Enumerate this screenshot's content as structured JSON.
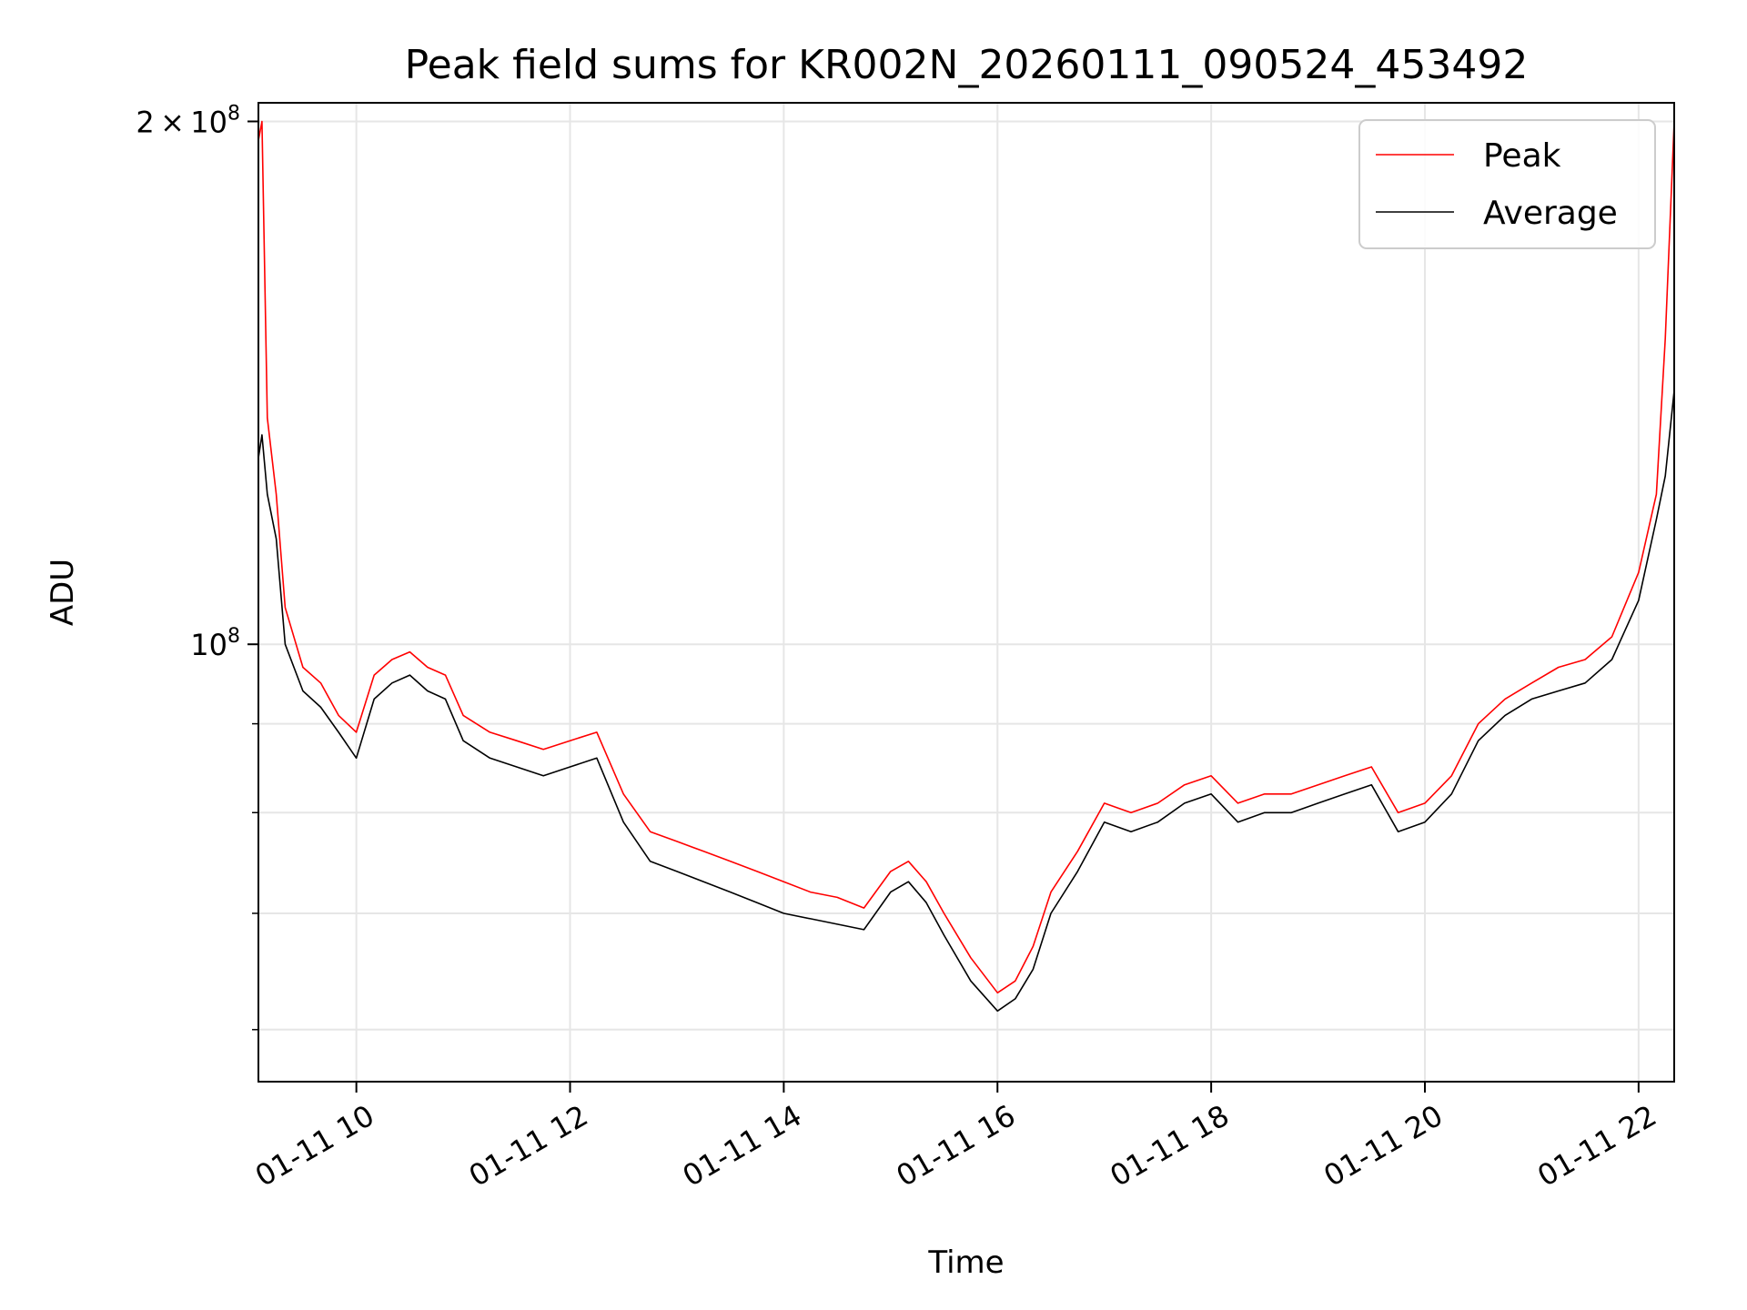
{
  "chart_data": {
    "type": "line",
    "title": "Peak field sums for KR002N_20260111_090524_453492",
    "xlabel": "Time",
    "ylabel": "ADU",
    "yscale": "log",
    "ylim": [
      56000000,
      205000000
    ],
    "xlim": [
      "2026-01-11 09:05",
      "2026-01-11 22:20"
    ],
    "grid": true,
    "legend": {
      "placement": "top-right",
      "entries": [
        "Peak",
        "Average"
      ]
    },
    "x_ticks": [
      "01-11 10",
      "01-11 12",
      "01-11 14",
      "01-11 16",
      "01-11 18",
      "01-11 20",
      "01-11 22"
    ],
    "x_tick_values": [
      "2026-01-11 10:00",
      "2026-01-11 12:00",
      "2026-01-11 14:00",
      "2026-01-11 16:00",
      "2026-01-11 18:00",
      "2026-01-11 20:00",
      "2026-01-11 22:00"
    ],
    "y_tick_labels": [
      {
        "value": 100000000,
        "mantissa": "",
        "exponent": "8"
      },
      {
        "value": 200000000,
        "mantissa": "2",
        "exponent": "8"
      }
    ],
    "y_minor_ticks": [
      60000000,
      70000000,
      80000000,
      90000000
    ],
    "series": [
      {
        "name": "Peak",
        "color": "#ff0000",
        "x": [
          "2026-01-11 09:05",
          "2026-01-11 09:07",
          "2026-01-11 09:10",
          "2026-01-11 09:15",
          "2026-01-11 09:20",
          "2026-01-11 09:30",
          "2026-01-11 09:40",
          "2026-01-11 09:50",
          "2026-01-11 10:00",
          "2026-01-11 10:10",
          "2026-01-11 10:20",
          "2026-01-11 10:30",
          "2026-01-11 10:40",
          "2026-01-11 10:50",
          "2026-01-11 11:00",
          "2026-01-11 11:15",
          "2026-01-11 11:30",
          "2026-01-11 11:45",
          "2026-01-11 12:00",
          "2026-01-11 12:15",
          "2026-01-11 12:30",
          "2026-01-11 12:45",
          "2026-01-11 13:00",
          "2026-01-11 13:15",
          "2026-01-11 13:30",
          "2026-01-11 13:45",
          "2026-01-11 14:00",
          "2026-01-11 14:15",
          "2026-01-11 14:30",
          "2026-01-11 14:45",
          "2026-01-11 15:00",
          "2026-01-11 15:10",
          "2026-01-11 15:20",
          "2026-01-11 15:30",
          "2026-01-11 15:45",
          "2026-01-11 16:00",
          "2026-01-11 16:10",
          "2026-01-11 16:20",
          "2026-01-11 16:30",
          "2026-01-11 16:45",
          "2026-01-11 17:00",
          "2026-01-11 17:15",
          "2026-01-11 17:30",
          "2026-01-11 17:45",
          "2026-01-11 18:00",
          "2026-01-11 18:15",
          "2026-01-11 18:30",
          "2026-01-11 18:45",
          "2026-01-11 19:00",
          "2026-01-11 19:15",
          "2026-01-11 19:30",
          "2026-01-11 19:45",
          "2026-01-11 20:00",
          "2026-01-11 20:15",
          "2026-01-11 20:30",
          "2026-01-11 20:45",
          "2026-01-11 21:00",
          "2026-01-11 21:15",
          "2026-01-11 21:30",
          "2026-01-11 21:45",
          "2026-01-11 22:00",
          "2026-01-11 22:10",
          "2026-01-11 22:15",
          "2026-01-11 22:20"
        ],
        "values": [
          195000000,
          200000000,
          135000000,
          122000000,
          105000000,
          97000000,
          95000000,
          91000000,
          89000000,
          96000000,
          98000000,
          99000000,
          97000000,
          96000000,
          91000000,
          89000000,
          88000000,
          87000000,
          88000000,
          89000000,
          82000000,
          78000000,
          77000000,
          76000000,
          75000000,
          74000000,
          73000000,
          72000000,
          71500000,
          70500000,
          74000000,
          75000000,
          73000000,
          70000000,
          66000000,
          63000000,
          64000000,
          67000000,
          72000000,
          76000000,
          81000000,
          80000000,
          81000000,
          83000000,
          84000000,
          81000000,
          82000000,
          82000000,
          83000000,
          84000000,
          85000000,
          80000000,
          81000000,
          84000000,
          90000000,
          93000000,
          95000000,
          97000000,
          98000000,
          101000000,
          110000000,
          122000000,
          150000000,
          200000000
        ]
      },
      {
        "name": "Average",
        "color": "#000000",
        "x": [
          "2026-01-11 09:05",
          "2026-01-11 09:07",
          "2026-01-11 09:10",
          "2026-01-11 09:15",
          "2026-01-11 09:20",
          "2026-01-11 09:30",
          "2026-01-11 09:40",
          "2026-01-11 09:50",
          "2026-01-11 10:00",
          "2026-01-11 10:10",
          "2026-01-11 10:20",
          "2026-01-11 10:30",
          "2026-01-11 10:40",
          "2026-01-11 10:50",
          "2026-01-11 11:00",
          "2026-01-11 11:15",
          "2026-01-11 11:30",
          "2026-01-11 11:45",
          "2026-01-11 12:00",
          "2026-01-11 12:15",
          "2026-01-11 12:30",
          "2026-01-11 12:45",
          "2026-01-11 13:00",
          "2026-01-11 13:15",
          "2026-01-11 13:30",
          "2026-01-11 13:45",
          "2026-01-11 14:00",
          "2026-01-11 14:15",
          "2026-01-11 14:30",
          "2026-01-11 14:45",
          "2026-01-11 15:00",
          "2026-01-11 15:10",
          "2026-01-11 15:20",
          "2026-01-11 15:30",
          "2026-01-11 15:45",
          "2026-01-11 16:00",
          "2026-01-11 16:10",
          "2026-01-11 16:20",
          "2026-01-11 16:30",
          "2026-01-11 16:45",
          "2026-01-11 17:00",
          "2026-01-11 17:15",
          "2026-01-11 17:30",
          "2026-01-11 17:45",
          "2026-01-11 18:00",
          "2026-01-11 18:15",
          "2026-01-11 18:30",
          "2026-01-11 18:45",
          "2026-01-11 19:00",
          "2026-01-11 19:15",
          "2026-01-11 19:30",
          "2026-01-11 19:45",
          "2026-01-11 20:00",
          "2026-01-11 20:15",
          "2026-01-11 20:30",
          "2026-01-11 20:45",
          "2026-01-11 21:00",
          "2026-01-11 21:15",
          "2026-01-11 21:30",
          "2026-01-11 21:45",
          "2026-01-11 22:00",
          "2026-01-11 22:10",
          "2026-01-11 22:15",
          "2026-01-11 22:20"
        ],
        "values": [
          128000000,
          132000000,
          122000000,
          115000000,
          100000000,
          94000000,
          92000000,
          89000000,
          86000000,
          93000000,
          95000000,
          96000000,
          94000000,
          93000000,
          88000000,
          86000000,
          85000000,
          84000000,
          85000000,
          86000000,
          79000000,
          75000000,
          74000000,
          73000000,
          72000000,
          71000000,
          70000000,
          69500000,
          69000000,
          68500000,
          72000000,
          73000000,
          71000000,
          68000000,
          64000000,
          61500000,
          62500000,
          65000000,
          70000000,
          74000000,
          79000000,
          78000000,
          79000000,
          81000000,
          82000000,
          79000000,
          80000000,
          80000000,
          81000000,
          82000000,
          83000000,
          78000000,
          79000000,
          82000000,
          88000000,
          91000000,
          93000000,
          94000000,
          95000000,
          98000000,
          106000000,
          118000000,
          125000000,
          140000000
        ]
      }
    ]
  }
}
